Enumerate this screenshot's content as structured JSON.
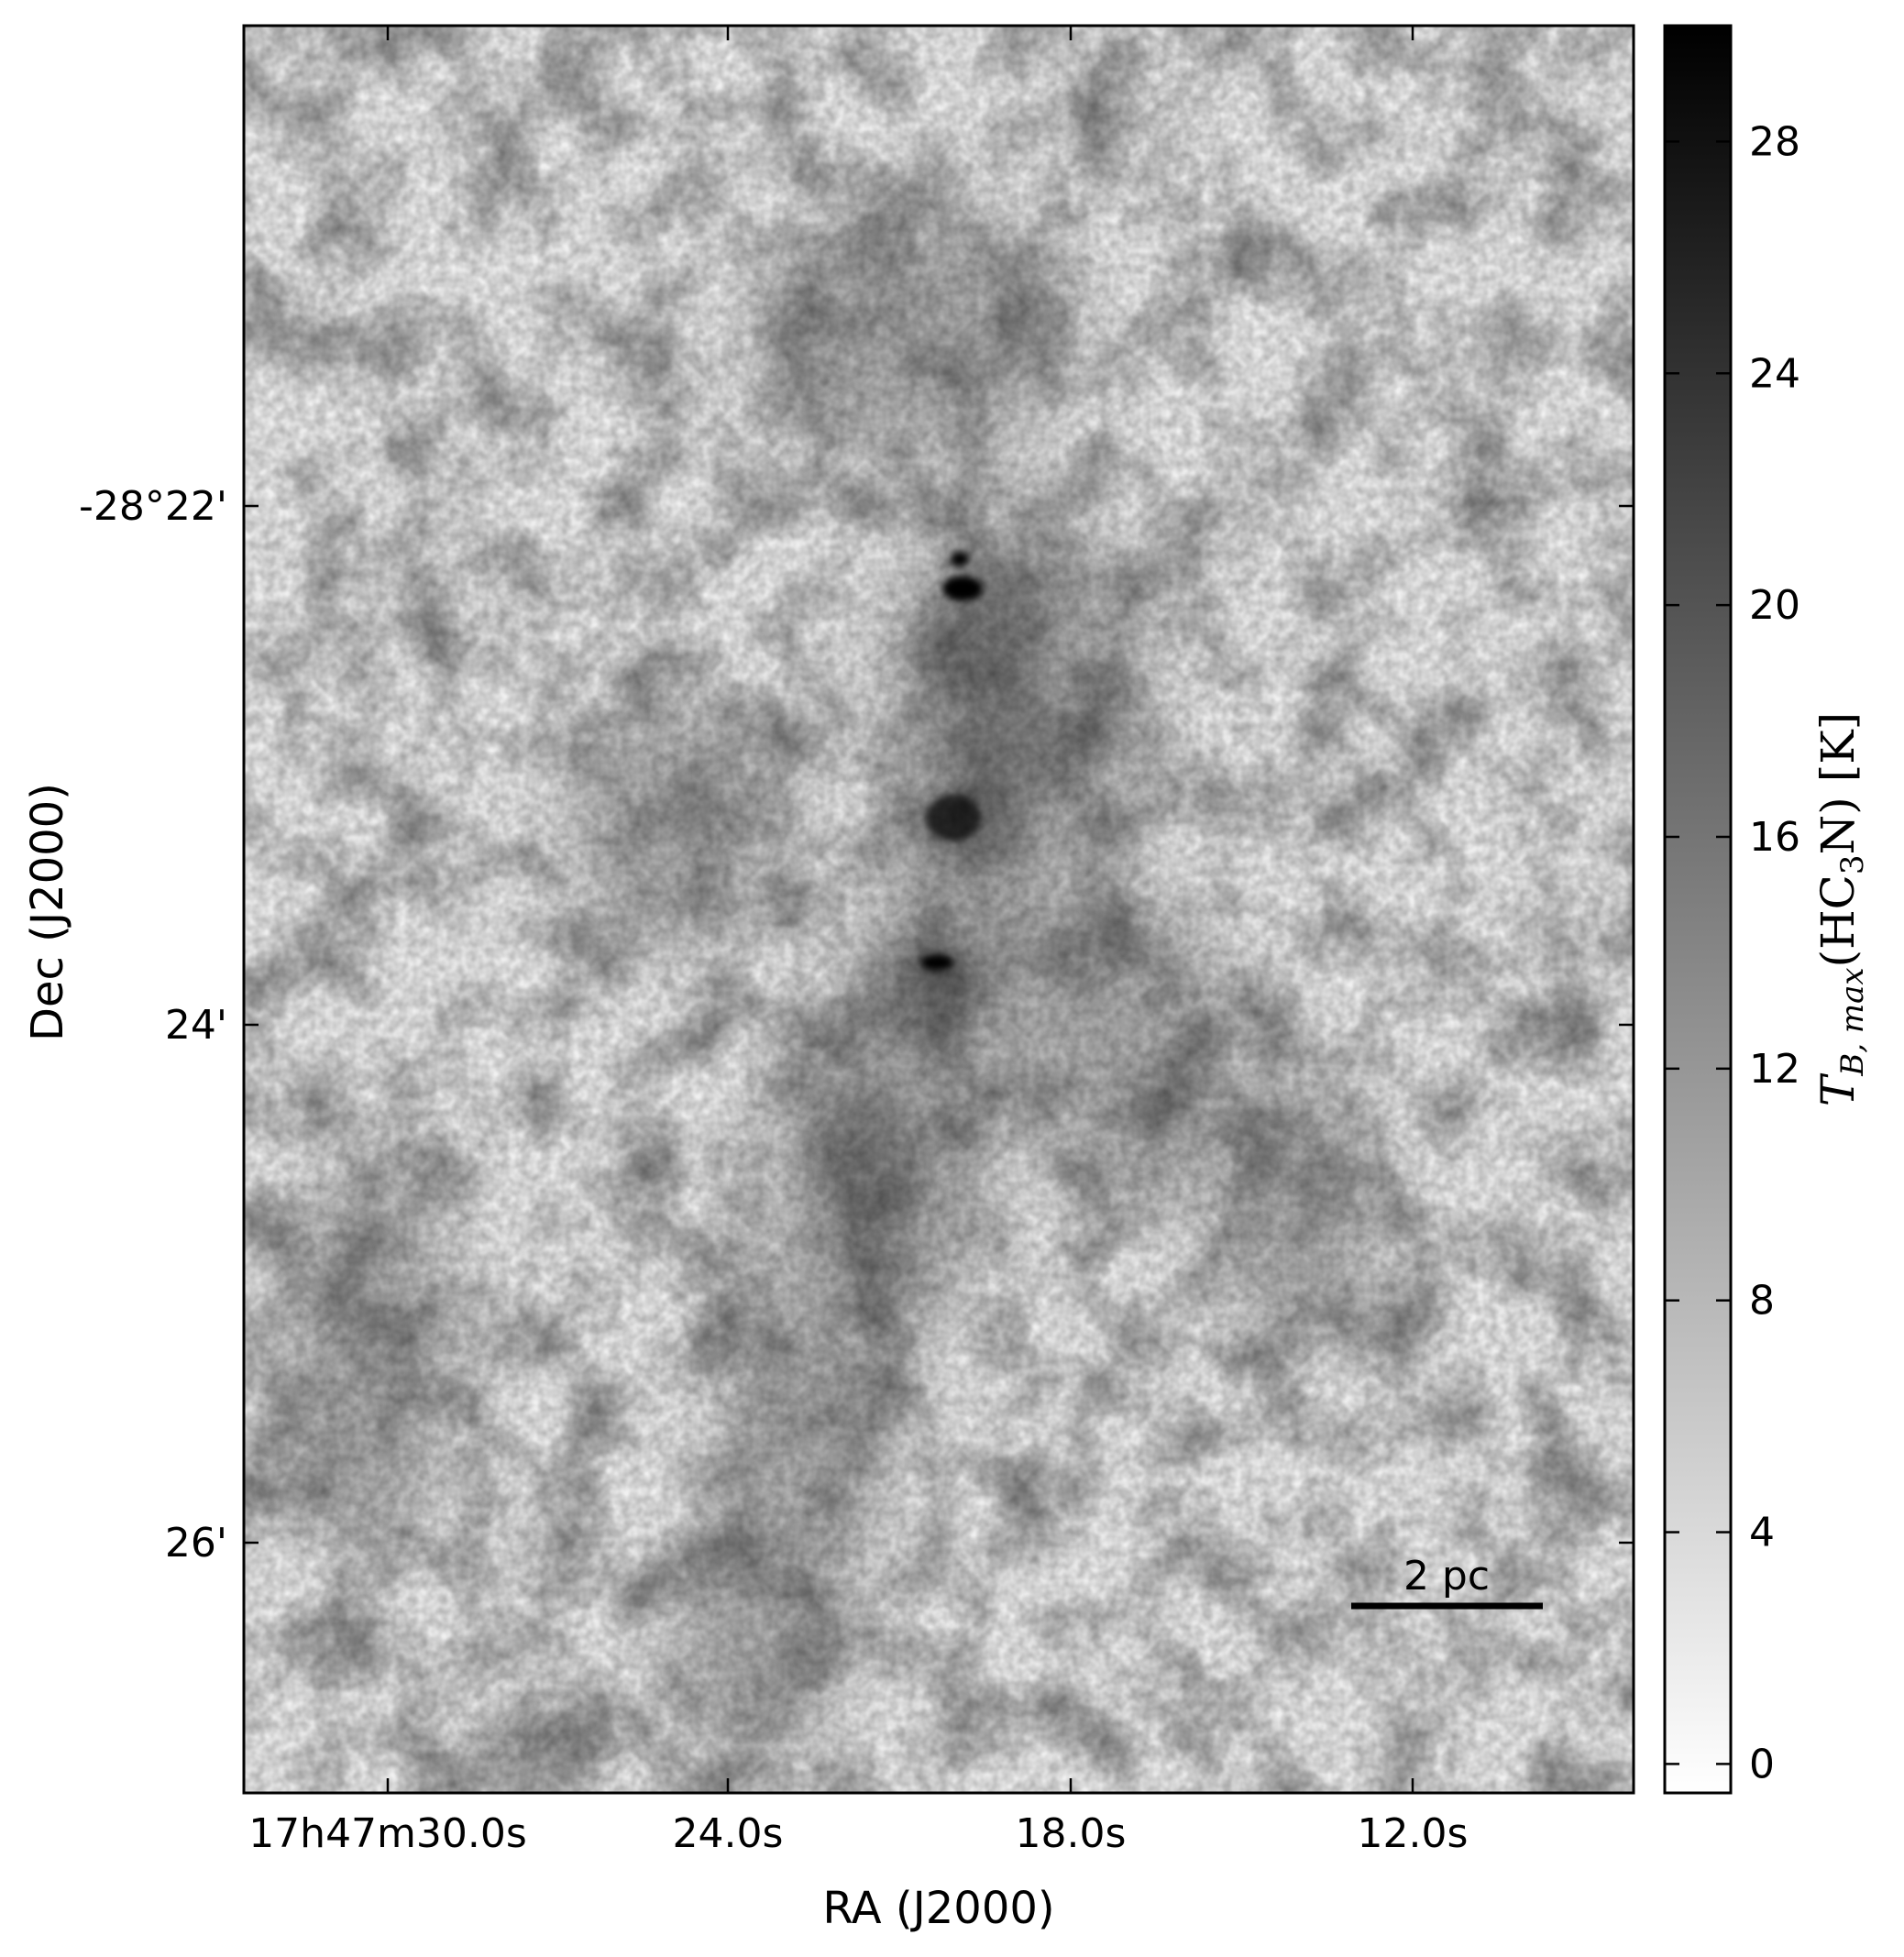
{
  "image": {
    "description_colormap": "grayscale, white = low, black = high",
    "colors": {
      "low": "#ffffff",
      "high": "#000000",
      "frame": "#000000"
    }
  },
  "axes": {
    "xlabel": "RA (J2000)",
    "ylabel": "Dec (J2000)",
    "xticks": [
      "17h47m30.0s",
      "24.0s",
      "18.0s",
      "12.0s"
    ],
    "yticks": [
      "-28°22'",
      "24'",
      "26'"
    ]
  },
  "colorbar": {
    "label_main": "T",
    "label_sub": "B, max",
    "label_species": "(HC",
    "label_species_sub": "3",
    "label_species_end": "N) [K]",
    "ticks": [
      "0",
      "4",
      "8",
      "12",
      "16",
      "20",
      "24",
      "28"
    ],
    "tick_values": [
      0,
      4,
      8,
      12,
      16,
      20,
      24,
      28
    ],
    "range": [
      -0.5,
      30
    ]
  },
  "scalebar": {
    "label": "2 pc"
  }
}
